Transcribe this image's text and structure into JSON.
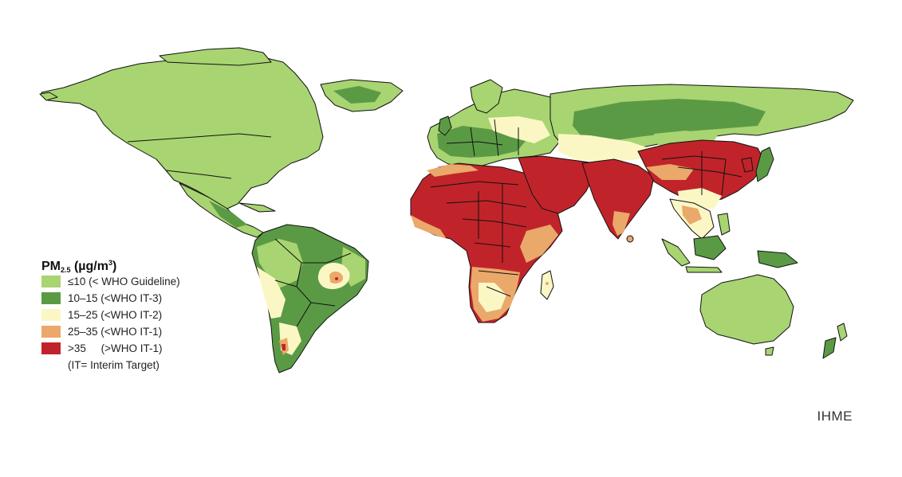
{
  "legend": {
    "title_main": "PM",
    "title_sub": "2.5",
    "title_units_pre": " (µg/m",
    "title_units_sup": "3",
    "title_units_post": ")",
    "items": [
      {
        "label": "≤10 (< WHO Guideline)",
        "color": "#a8d471"
      },
      {
        "label": "10–15 (<WHO IT-3)",
        "color": "#5b9a45"
      },
      {
        "label": "15–25 (<WHO IT-2)",
        "color": "#fbf7c5"
      },
      {
        "label": "25–35 (<WHO IT-1)",
        "color": "#eaa86a"
      },
      {
        "label": ">35     (>WHO IT-1)",
        "color": "#c0242a"
      }
    ],
    "note": "(IT= Interim Target)"
  },
  "credit": "IHME",
  "colors": {
    "low": "#a8d471",
    "low_mid": "#5b9a45",
    "mid": "#fbf7c5",
    "high_mid": "#eaa86a",
    "high": "#c0242a",
    "border": "#111111"
  }
}
